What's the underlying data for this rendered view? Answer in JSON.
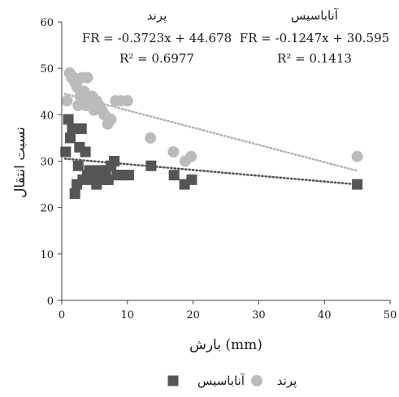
{
  "chart_data": {
    "type": "scatter",
    "xlabel": "بارش (mm)",
    "ylabel": "نسبت انتقال",
    "xlim": [
      0,
      50
    ],
    "ylim": [
      0,
      60
    ],
    "xticks": [
      0,
      10,
      20,
      30,
      40,
      50
    ],
    "yticks": [
      0,
      10,
      20,
      30,
      40,
      50,
      60
    ],
    "grid": false,
    "legend_position": "bottom",
    "series": [
      {
        "name": "آناباسیس",
        "marker": "square",
        "color": "#555555",
        "trend_color": "#555555",
        "equation": "FR = -0.1247x + 30.595",
        "r2": "R² = 0.1413",
        "trend": {
          "slope": -0.1247,
          "intercept": 30.595,
          "x_range": [
            0.5,
            45
          ]
        },
        "points": [
          [
            0.6,
            32
          ],
          [
            1.0,
            39
          ],
          [
            1.3,
            35
          ],
          [
            1.6,
            37
          ],
          [
            2.0,
            23
          ],
          [
            2.3,
            25
          ],
          [
            2.5,
            29
          ],
          [
            2.7,
            33
          ],
          [
            3.0,
            37
          ],
          [
            3.2,
            26
          ],
          [
            3.6,
            32
          ],
          [
            3.9,
            27
          ],
          [
            4.2,
            28
          ],
          [
            4.6,
            26
          ],
          [
            4.9,
            27
          ],
          [
            5.3,
            25
          ],
          [
            5.6,
            28
          ],
          [
            5.9,
            27
          ],
          [
            6.3,
            26
          ],
          [
            6.7,
            28
          ],
          [
            7.1,
            26
          ],
          [
            7.5,
            29
          ],
          [
            8.0,
            30
          ],
          [
            8.4,
            27
          ],
          [
            9.4,
            27
          ],
          [
            10.2,
            27
          ],
          [
            13.6,
            29
          ],
          [
            17.1,
            27
          ],
          [
            18.7,
            25
          ],
          [
            19.8,
            26
          ],
          [
            45.0,
            25
          ]
        ]
      },
      {
        "name": "پرند",
        "marker": "circle",
        "color": "#bbbbbb",
        "trend_color": "#b3b3b3",
        "equation": "FR = -0.3723x + 44.678",
        "r2": "R² = 0.6977",
        "trend": {
          "slope": -0.3723,
          "intercept": 44.678,
          "x_range": [
            0.5,
            45
          ]
        },
        "points": [
          [
            0.8,
            43
          ],
          [
            1.2,
            49
          ],
          [
            1.5,
            48
          ],
          [
            1.8,
            48
          ],
          [
            2.0,
            47
          ],
          [
            2.3,
            46
          ],
          [
            2.5,
            42
          ],
          [
            2.8,
            44
          ],
          [
            3.1,
            48
          ],
          [
            3.4,
            45
          ],
          [
            3.7,
            42
          ],
          [
            3.9,
            48
          ],
          [
            4.2,
            43
          ],
          [
            4.6,
            44
          ],
          [
            4.9,
            41
          ],
          [
            5.3,
            43
          ],
          [
            5.7,
            42
          ],
          [
            6.1,
            41
          ],
          [
            6.5,
            40
          ],
          [
            7.0,
            38
          ],
          [
            7.5,
            39
          ],
          [
            8.2,
            43
          ],
          [
            9.0,
            43
          ],
          [
            10.0,
            43
          ],
          [
            13.5,
            35
          ],
          [
            17.0,
            32
          ],
          [
            18.8,
            30
          ],
          [
            19.7,
            31
          ],
          [
            45.0,
            31
          ]
        ]
      }
    ]
  }
}
